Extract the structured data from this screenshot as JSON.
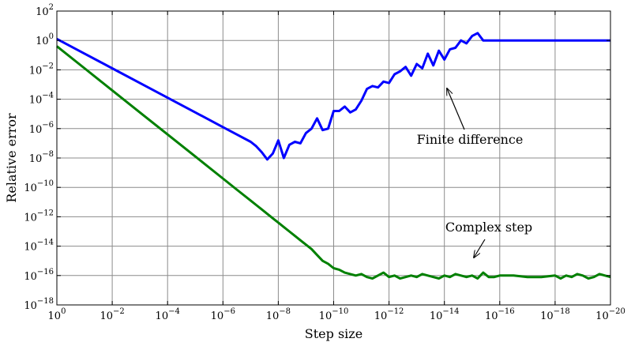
{
  "chart_data": {
    "type": "line",
    "title": "",
    "xlabel": "Step size",
    "ylabel": "Relative error",
    "x_scale": "log",
    "y_scale": "log",
    "x_direction": "decreasing",
    "xlim": [
      1,
      1e-20
    ],
    "ylim": [
      1e-18,
      100
    ],
    "grid": true,
    "x_ticks": [
      {
        "value": 0,
        "base": "10",
        "exp": "0"
      },
      {
        "value": -2,
        "base": "10",
        "exp": "−2"
      },
      {
        "value": -4,
        "base": "10",
        "exp": "−4"
      },
      {
        "value": -6,
        "base": "10",
        "exp": "−6"
      },
      {
        "value": -8,
        "base": "10",
        "exp": "−8"
      },
      {
        "value": -10,
        "base": "10",
        "exp": "−10"
      },
      {
        "value": -12,
        "base": "10",
        "exp": "−12"
      },
      {
        "value": -14,
        "base": "10",
        "exp": "−14"
      },
      {
        "value": -16,
        "base": "10",
        "exp": "−16"
      },
      {
        "value": -18,
        "base": "10",
        "exp": "−18"
      },
      {
        "value": -20,
        "base": "10",
        "exp": "−20"
      }
    ],
    "y_ticks": [
      {
        "value": 2,
        "base": "10",
        "exp": "2"
      },
      {
        "value": 0,
        "base": "10",
        "exp": "0"
      },
      {
        "value": -2,
        "base": "10",
        "exp": "−2"
      },
      {
        "value": -4,
        "base": "10",
        "exp": "−4"
      },
      {
        "value": -6,
        "base": "10",
        "exp": "−6"
      },
      {
        "value": -8,
        "base": "10",
        "exp": "−8"
      },
      {
        "value": -10,
        "base": "10",
        "exp": "−10"
      },
      {
        "value": -12,
        "base": "10",
        "exp": "−12"
      },
      {
        "value": -14,
        "base": "10",
        "exp": "−14"
      },
      {
        "value": -16,
        "base": "10",
        "exp": "−16"
      },
      {
        "value": -18,
        "base": "10",
        "exp": "−18"
      }
    ],
    "series": [
      {
        "color": "#0000ff",
        "log10_x": [
          0,
          -1,
          -2,
          -3,
          -4,
          -5,
          -6,
          -6.5,
          -7,
          -7.2,
          -7.4,
          -7.6,
          -7.8,
          -8.0,
          -8.2,
          -8.4,
          -8.6,
          -8.8,
          -9.0,
          -9.2,
          -9.4,
          -9.6,
          -9.8,
          -10.0,
          -10.2,
          -10.4,
          -10.6,
          -10.8,
          -11.0,
          -11.2,
          -11.4,
          -11.6,
          -11.8,
          -12.0,
          -12.2,
          -12.4,
          -12.6,
          -12.8,
          -13.0,
          -13.2,
          -13.4,
          -13.6,
          -13.8,
          -14.0,
          -14.2,
          -14.4,
          -14.6,
          -14.8,
          -15.0,
          -15.2,
          -15.4,
          -15.6,
          -15.8,
          -16.0,
          -17,
          -18,
          -19,
          -20
        ],
        "log10_y": [
          0.1,
          -0.9,
          -1.9,
          -2.9,
          -3.9,
          -4.9,
          -5.9,
          -6.4,
          -6.9,
          -7.2,
          -7.6,
          -8.1,
          -7.7,
          -6.8,
          -8.0,
          -7.1,
          -6.9,
          -7.0,
          -6.3,
          -6.0,
          -5.3,
          -6.1,
          -6.0,
          -4.8,
          -4.8,
          -4.5,
          -4.9,
          -4.7,
          -4.1,
          -3.3,
          -3.1,
          -3.2,
          -2.8,
          -2.9,
          -2.3,
          -2.1,
          -1.8,
          -2.4,
          -1.6,
          -1.9,
          -0.9,
          -1.7,
          -0.7,
          -1.3,
          -0.6,
          -0.5,
          0.0,
          -0.2,
          0.3,
          0.5,
          0.0,
          0.0,
          0.0,
          0.0,
          0.0,
          0.0,
          0.0,
          0.0
        ]
      },
      {
        "color": "#008000",
        "log10_x": [
          0,
          -1,
          -2,
          -3,
          -4,
          -5,
          -6,
          -6.5,
          -7,
          -7.2,
          -7.4,
          -7.6,
          -7.8,
          -8.0,
          -8.2,
          -8.4,
          -8.6,
          -8.8,
          -9.0,
          -9.2,
          -9.4,
          -9.6,
          -9.8,
          -10.0,
          -10.2,
          -10.4,
          -10.6,
          -10.8,
          -11.0,
          -11.2,
          -11.4,
          -11.6,
          -11.8,
          -12.0,
          -12.2,
          -12.4,
          -12.6,
          -12.8,
          -13.0,
          -13.2,
          -13.4,
          -13.6,
          -13.8,
          -14.0,
          -14.2,
          -14.4,
          -14.6,
          -14.8,
          -15.0,
          -15.2,
          -15.4,
          -15.6,
          -15.8,
          -16.0,
          -16.5,
          -17.0,
          -17.5,
          -18.0,
          -18.2,
          -18.4,
          -18.6,
          -18.8,
          -19.0,
          -19.2,
          -19.4,
          -19.6,
          -19.8,
          -20.0
        ],
        "log10_y": [
          -0.4,
          -1.9,
          -3.4,
          -4.9,
          -6.4,
          -7.9,
          -9.4,
          -10.15,
          -10.9,
          -11.2,
          -11.5,
          -11.8,
          -12.1,
          -12.4,
          -12.7,
          -13.0,
          -13.3,
          -13.6,
          -13.9,
          -14.2,
          -14.6,
          -15.0,
          -15.2,
          -15.5,
          -15.6,
          -15.8,
          -15.9,
          -16.0,
          -15.9,
          -16.1,
          -16.2,
          -16.0,
          -15.8,
          -16.1,
          -16.0,
          -16.2,
          -16.1,
          -16.0,
          -16.1,
          -15.9,
          -16.0,
          -16.1,
          -16.2,
          -16.0,
          -16.1,
          -15.9,
          -16.0,
          -16.1,
          -16.0,
          -16.2,
          -15.8,
          -16.1,
          -16.1,
          -16.0,
          -16.0,
          -16.1,
          -16.1,
          -16.0,
          -16.2,
          -16.0,
          -16.1,
          -15.9,
          -16.0,
          -16.2,
          -16.1,
          -15.9,
          -16.0,
          -16.1
        ]
      }
    ],
    "annotations": [
      {
        "text": "Finite difference",
        "target_log10_x": -14.0,
        "target_log10_y": -3.7
      },
      {
        "text": "Complex step",
        "target_log10_x": -15.0,
        "target_log10_y": -15.1
      }
    ]
  }
}
